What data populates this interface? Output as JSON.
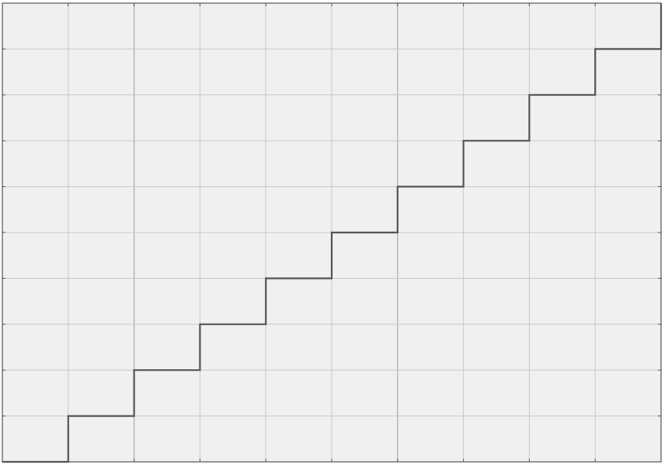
{
  "chart_data": {
    "type": "line",
    "step": "post",
    "title": "",
    "xlabel": "",
    "ylabel": "",
    "xlim": [
      0,
      10
    ],
    "ylim": [
      0,
      10
    ],
    "grid": true,
    "x_ticks": [
      0,
      1,
      2,
      3,
      4,
      5,
      6,
      7,
      8,
      9,
      10
    ],
    "y_ticks": [
      0,
      1,
      2,
      3,
      4,
      5,
      6,
      7,
      8,
      9,
      10
    ],
    "series": [
      {
        "x": [
          0,
          1,
          2,
          3,
          4,
          5,
          6,
          7,
          8,
          9,
          10
        ],
        "y": [
          0,
          1,
          2,
          3,
          4,
          5,
          6,
          7,
          8,
          9,
          10
        ]
      }
    ],
    "colors": {
      "background": "#f0f0f0",
      "grid": "#c8c8c8",
      "grid_major": "#b4b4b4",
      "frame": "#555555",
      "line": "#555555"
    }
  }
}
